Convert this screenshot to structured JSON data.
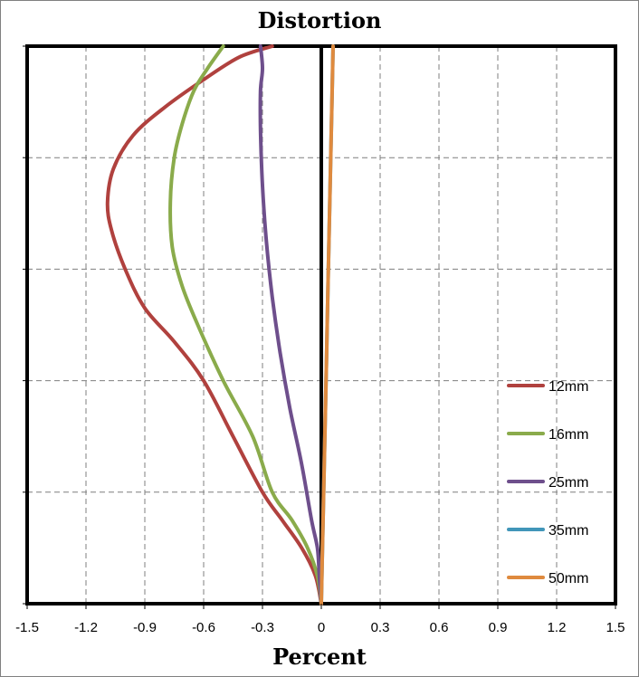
{
  "chart_data": {
    "type": "line",
    "title": "Distortion",
    "xlabel": "Percent",
    "ylabel": "",
    "xlim": [
      -1.5,
      1.5
    ],
    "xticks": [
      "-1.5",
      "-1.2",
      "-0.9",
      "-0.6",
      "-0.3",
      "0",
      "0.3",
      "0.6",
      "0.9",
      "1.2",
      "1.5"
    ],
    "ylim": [
      0,
      1
    ],
    "y_gridlines": [
      0.2,
      0.4,
      0.6,
      0.8
    ],
    "grid": true,
    "legend_position": "right",
    "series": [
      {
        "name": "12mm",
        "color": "#b0413e",
        "x": [
          0,
          -0.03,
          -0.1,
          -0.2,
          -0.3,
          -0.45,
          -0.6,
          -0.75,
          -0.9,
          -1.0,
          -1.07,
          -1.09,
          -1.06,
          -0.96,
          -0.8,
          -0.6,
          -0.42,
          -0.25
        ],
        "y": [
          0,
          0.05,
          0.1,
          0.15,
          0.2,
          0.3,
          0.4,
          0.47,
          0.53,
          0.6,
          0.67,
          0.72,
          0.78,
          0.84,
          0.89,
          0.94,
          0.98,
          1.0
        ]
      },
      {
        "name": "16mm",
        "color": "#8aab4b",
        "x": [
          0,
          -0.02,
          -0.07,
          -0.15,
          -0.25,
          -0.35,
          -0.5,
          -0.63,
          -0.71,
          -0.76,
          -0.77,
          -0.75,
          -0.71,
          -0.65,
          -0.58,
          -0.5
        ],
        "y": [
          0,
          0.05,
          0.1,
          0.15,
          0.2,
          0.3,
          0.4,
          0.5,
          0.57,
          0.64,
          0.72,
          0.8,
          0.86,
          0.92,
          0.96,
          1.0
        ]
      },
      {
        "name": "25mm",
        "color": "#6e4f8c",
        "x": [
          0,
          -0.01,
          -0.02,
          -0.05,
          -0.1,
          -0.16,
          -0.21,
          -0.25,
          -0.28,
          -0.3,
          -0.31,
          -0.31,
          -0.3,
          -0.31
        ],
        "y": [
          0,
          0.05,
          0.1,
          0.15,
          0.25,
          0.35,
          0.45,
          0.55,
          0.65,
          0.75,
          0.85,
          0.92,
          0.96,
          1.0
        ]
      },
      {
        "name": "35mm",
        "color": "#4196b9",
        "x": [
          0,
          0.01,
          0.02,
          0.03,
          0.04,
          0.05,
          0.06
        ],
        "y": [
          0,
          0.17,
          0.33,
          0.5,
          0.67,
          0.83,
          1.0
        ]
      },
      {
        "name": "50mm",
        "color": "#df8a3e",
        "x": [
          0,
          0.01,
          0.02,
          0.03,
          0.04,
          0.05,
          0.06
        ],
        "y": [
          0,
          0.17,
          0.33,
          0.5,
          0.67,
          0.83,
          1.0
        ]
      }
    ]
  }
}
